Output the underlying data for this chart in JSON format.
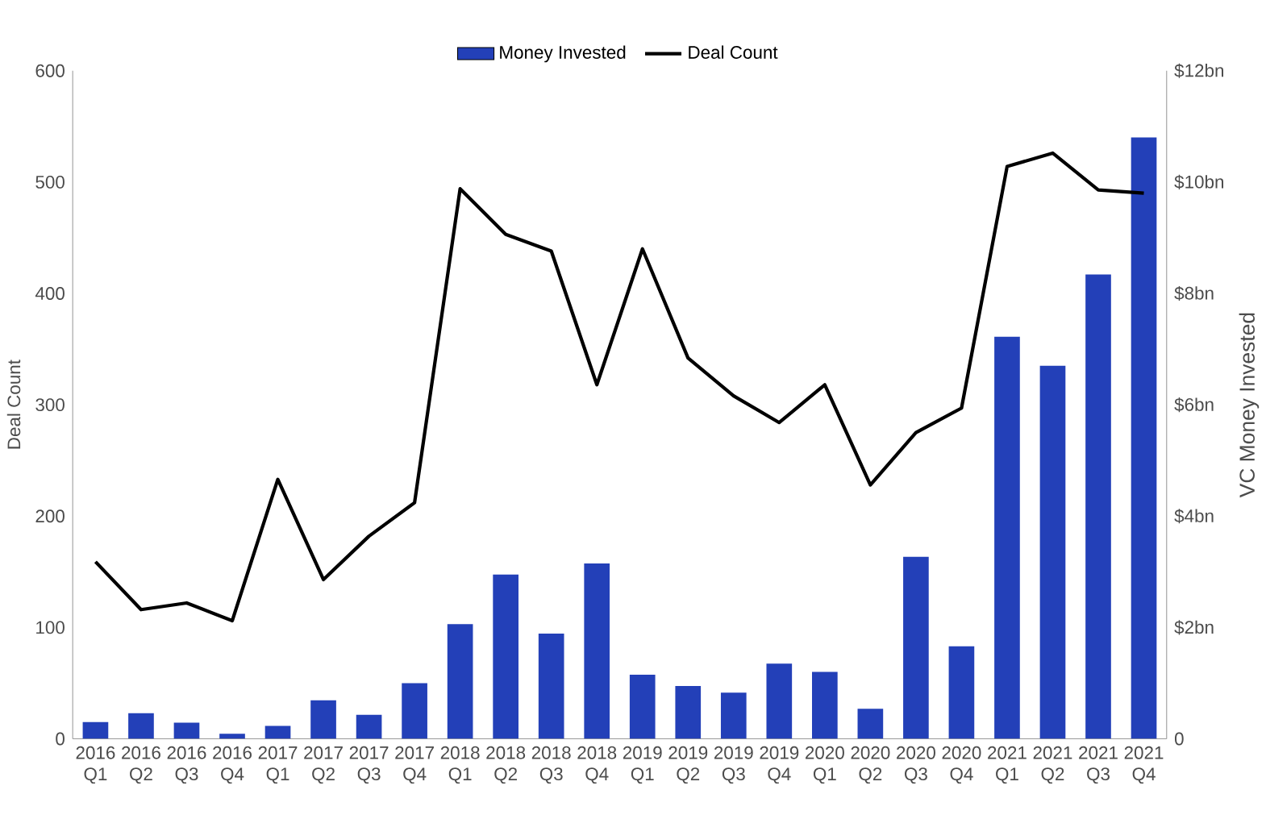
{
  "chart_data": {
    "type": "bar",
    "categories": [
      "2016 Q1",
      "2016 Q2",
      "2016 Q3",
      "2016 Q4",
      "2017 Q1",
      "2017 Q2",
      "2017 Q3",
      "2017 Q4",
      "2018 Q1",
      "2018 Q2",
      "2018 Q3",
      "2018 Q4",
      "2019 Q1",
      "2019 Q2",
      "2019 Q3",
      "2019 Q4",
      "2020 Q1",
      "2020 Q2",
      "2020 Q3",
      "2020 Q4",
      "2021 Q1",
      "2021 Q2",
      "2021 Q3",
      "2021 Q4"
    ],
    "series": [
      {
        "name": "Money Invested",
        "axis": "y2",
        "color": "#2340b8",
        "values": [
          0.3,
          0.46,
          0.29,
          0.09,
          0.23,
          0.69,
          0.43,
          1.0,
          2.06,
          2.95,
          1.89,
          3.15,
          1.15,
          0.95,
          0.83,
          1.35,
          1.2,
          0.54,
          3.27,
          1.66,
          7.22,
          6.7,
          8.34,
          10.8
        ]
      },
      {
        "name": "Deal Count",
        "type": "line",
        "color": "#000000",
        "values": [
          159,
          116,
          122,
          106,
          233,
          143,
          182,
          212,
          494,
          453,
          438,
          318,
          440,
          342,
          308,
          284,
          318,
          228,
          275,
          297,
          514,
          526,
          493,
          490
        ]
      }
    ],
    "ylabel": "Deal Count",
    "y2label": "VC Money Invested",
    "ylim": [
      0,
      600
    ],
    "yticks": [
      0,
      100,
      200,
      300,
      400,
      500,
      600
    ],
    "y2lim": [
      0,
      12
    ],
    "y2ticks": [
      {
        "value": 0,
        "label": "0"
      },
      {
        "value": 2,
        "label": "$2bn"
      },
      {
        "value": 4,
        "label": "$4bn"
      },
      {
        "value": 6,
        "label": "$6bn"
      },
      {
        "value": 8,
        "label": "$8bn"
      },
      {
        "value": 10,
        "label": "$10bn"
      },
      {
        "value": 12,
        "label": "$12bn"
      }
    ],
    "legend": "top",
    "grid": false,
    "marker": "none",
    "line_style": "solid"
  }
}
